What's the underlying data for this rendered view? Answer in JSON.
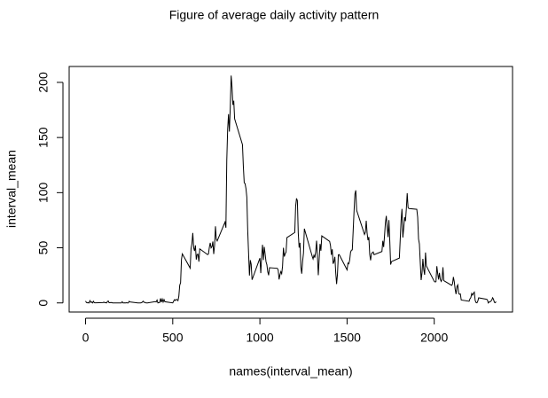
{
  "chart_data": {
    "type": "line",
    "title": "Figure of average daily activity pattern",
    "xlabel": "names(interval_mean)",
    "ylabel": "interval_mean",
    "xlim": [
      -94.2,
      2449.2
    ],
    "ylim": [
      -8.25,
      214.42
    ],
    "xticks": [
      0,
      500,
      1000,
      1500,
      2000
    ],
    "yticks": [
      0,
      50,
      100,
      150,
      200
    ],
    "x": [
      0,
      5,
      10,
      15,
      20,
      25,
      30,
      35,
      40,
      45,
      50,
      55,
      100,
      105,
      110,
      115,
      120,
      125,
      130,
      135,
      140,
      145,
      150,
      155,
      200,
      205,
      210,
      215,
      220,
      225,
      230,
      235,
      240,
      245,
      250,
      255,
      300,
      305,
      310,
      315,
      320,
      325,
      330,
      335,
      340,
      345,
      350,
      355,
      400,
      405,
      410,
      415,
      420,
      425,
      430,
      435,
      440,
      445,
      450,
      455,
      500,
      505,
      510,
      515,
      520,
      525,
      530,
      535,
      540,
      545,
      550,
      555,
      600,
      605,
      610,
      615,
      620,
      625,
      630,
      635,
      640,
      645,
      650,
      655,
      700,
      705,
      710,
      715,
      720,
      725,
      730,
      735,
      740,
      745,
      750,
      755,
      800,
      805,
      810,
      815,
      820,
      825,
      830,
      835,
      840,
      845,
      850,
      855,
      900,
      905,
      910,
      915,
      920,
      925,
      930,
      935,
      940,
      945,
      950,
      955,
      1000,
      1005,
      1010,
      1015,
      1020,
      1025,
      1030,
      1035,
      1040,
      1045,
      1050,
      1055,
      1100,
      1105,
      1110,
      1115,
      1120,
      1125,
      1130,
      1135,
      1140,
      1145,
      1150,
      1155,
      1200,
      1205,
      1210,
      1215,
      1220,
      1225,
      1230,
      1235,
      1240,
      1245,
      1250,
      1255,
      1300,
      1305,
      1310,
      1315,
      1320,
      1325,
      1330,
      1335,
      1340,
      1345,
      1350,
      1355,
      1400,
      1405,
      1410,
      1415,
      1420,
      1425,
      1430,
      1435,
      1440,
      1445,
      1450,
      1455,
      1500,
      1505,
      1510,
      1515,
      1520,
      1525,
      1530,
      1535,
      1540,
      1545,
      1550,
      1555,
      1600,
      1605,
      1610,
      1615,
      1620,
      1625,
      1630,
      1635,
      1640,
      1645,
      1650,
      1655,
      1700,
      1705,
      1710,
      1715,
      1720,
      1725,
      1730,
      1735,
      1740,
      1745,
      1750,
      1755,
      1800,
      1805,
      1810,
      1815,
      1820,
      1825,
      1830,
      1835,
      1840,
      1845,
      1850,
      1855,
      1900,
      1905,
      1910,
      1915,
      1920,
      1925,
      1930,
      1935,
      1940,
      1945,
      1950,
      1955,
      2000,
      2005,
      2010,
      2015,
      2020,
      2025,
      2030,
      2035,
      2040,
      2045,
      2050,
      2055,
      2100,
      2105,
      2110,
      2115,
      2120,
      2125,
      2130,
      2135,
      2140,
      2145,
      2150,
      2155,
      2200,
      2205,
      2210,
      2215,
      2220,
      2225,
      2230,
      2235,
      2240,
      2245,
      2250,
      2255,
      2300,
      2305,
      2310,
      2315,
      2320,
      2325,
      2330,
      2335,
      2340,
      2345,
      2350,
      2355
    ],
    "series": [
      {
        "color": "#000000",
        "values": [
          1.7,
          0.3,
          0.1,
          0.2,
          0,
          2.1,
          0.5,
          0.9,
          0,
          1.5,
          0.2,
          0.1,
          0.3,
          0.7,
          0.2,
          0.3,
          0,
          1.1,
          1.8,
          0.2,
          0.2,
          0.4,
          0.3,
          0,
          0,
          0,
          1.1,
          0,
          0,
          0.1,
          0,
          0.2,
          0,
          0,
          1.5,
          0.9,
          0,
          0,
          0,
          0,
          0.2,
          0.6,
          1.6,
          0.6,
          0.5,
          0.1,
          0,
          0,
          1.2,
          0.9,
          2.6,
          0,
          0.3,
          0.4,
          4.1,
          0.7,
          3.5,
          0.8,
          3.1,
          1.1,
          0,
          1.6,
          3.0,
          2.2,
          3.2,
          3.0,
          2.1,
          6.1,
          16,
          18.3,
          39.4,
          44.5,
          31.5,
          49.3,
          53.8,
          63.5,
          50,
          47.1,
          52.2,
          39.3,
          44,
          44.2,
          37.4,
          49,
          43.8,
          44.4,
          50.5,
          54.5,
          49.9,
          51,
          55.7,
          44.3,
          52.3,
          69.5,
          57.8,
          56.2,
          73.4,
          68.2,
          129.4,
          157.5,
          171.2,
          155.4,
          177.3,
          206.2,
          195.9,
          179.6,
          183.4,
          167,
          143.5,
          124,
          109.1,
          108.1,
          103.7,
          95.9,
          66.2,
          45.2,
          24.8,
          38.8,
          35,
          21,
          40.6,
          27,
          42.4,
          52.7,
          38.9,
          50.8,
          44.3,
          37.4,
          34.7,
          28.3,
          25.1,
          31.9,
          31.4,
          29.7,
          21.3,
          25.5,
          28.4,
          26.5,
          33.4,
          50,
          42,
          44.6,
          46,
          59.2,
          63.9,
          87.7,
          94.8,
          92.8,
          63.4,
          50.2,
          54.5,
          32.4,
          26.5,
          37.7,
          45.1,
          67.3,
          42.3,
          39.9,
          43.3,
          41,
          46.2,
          56.4,
          42.8,
          25.1,
          40,
          53.5,
          47.3,
          60.8,
          55.8,
          52,
          43.6,
          48.7,
          35.5,
          37.5,
          41.8,
          27.5,
          17.1,
          26.1,
          43.6,
          43.8,
          30,
          36.1,
          35.5,
          38.8,
          46,
          47.8,
          48.1,
          65.3,
          82.9,
          98.7,
          102.1,
          84,
          62.1,
          64.1,
          74.5,
          63.2,
          56.9,
          59.8,
          43.9,
          38.6,
          44.7,
          45.5,
          46.2,
          43.7,
          46.6,
          56.3,
          50.7,
          61.2,
          72.7,
          78.9,
          68.9,
          59.7,
          75.1,
          56.5,
          34.8,
          37.5,
          40.7,
          58,
          74.7,
          85.3,
          59.3,
          67.8,
          77.7,
          74.2,
          85.3,
          99.5,
          86.6,
          85.6,
          84.9,
          77.8,
          58,
          53.4,
          36.3,
          20.7,
          27.4,
          40,
          30.2,
          25.5,
          45.7,
          33.5,
          19.6,
          19,
          19.3,
          33.3,
          26.8,
          21.2,
          27.3,
          21.3,
          19.5,
          21.3,
          32.3,
          20.2,
          15.9,
          17.2,
          23.5,
          19.2,
          12.5,
          8,
          14.7,
          16.3,
          8.7,
          7.8,
          8.1,
          2.6,
          1.5,
          3.7,
          4.8,
          8.5,
          7.1,
          8.7,
          9.8,
          2.2,
          0.3,
          0.1,
          1.6,
          4.6,
          3.3,
          2.8,
          0,
          0.8,
          1,
          1.6,
          2.6,
          4.7,
          3.3,
          0.6,
          0.2,
          1.1
        ]
      }
    ]
  }
}
